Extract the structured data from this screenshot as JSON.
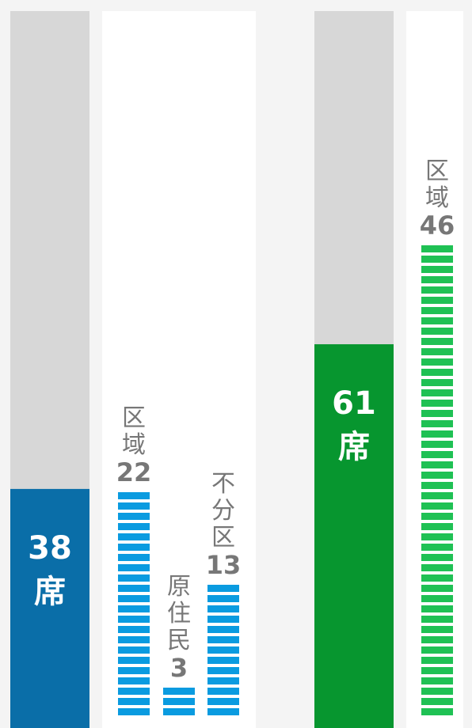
{
  "unit": "席",
  "parties": [
    {
      "seats": 38,
      "color": "#0a6ea8",
      "stripe_color": "#0a9be0",
      "segments": [
        {
          "label": "区域",
          "value": 22
        },
        {
          "label": "原住民",
          "value": 3
        },
        {
          "label": "不分区",
          "value": 13
        }
      ]
    },
    {
      "seats": 61,
      "color": "#07962f",
      "stripe_color": "#1fc154",
      "segments": [
        {
          "label": "区域",
          "value": 46
        }
      ]
    }
  ]
}
